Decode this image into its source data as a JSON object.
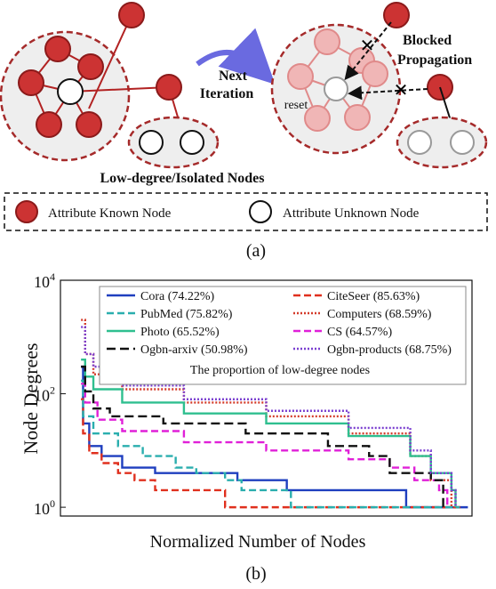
{
  "panel_a": {
    "arrow_label_line1": "Next",
    "arrow_label_line2": "Iteration",
    "blocked_line1": "Blocked",
    "blocked_line2": "Propagation",
    "reset_label": "reset",
    "low_degree_label": "Low-degree/Isolated Nodes",
    "legend_known": "Attribute Known Node",
    "legend_unknown": "Attribute Unknown Node",
    "caption": "(a)",
    "colors": {
      "known_fill": "#cc3333",
      "known_stroke": "#8b1a1a",
      "faded_fill": "#f0b6b6",
      "faded_stroke": "#e08a8a",
      "circle_region": "#eeeeee",
      "dashed_border": "#a52a2a",
      "arrow": "#6a6ae0"
    }
  },
  "panel_b": {
    "caption": "(b)",
    "legend_note": "The proportion of low-degree nodes"
  },
  "chart_data": {
    "type": "line",
    "xlabel": "Normalized Number of Nodes",
    "ylabel": "Node Degrees",
    "yscale": "log",
    "ylim": [
      0.7,
      10000
    ],
    "xlim": [
      0,
      1
    ],
    "y_ticks": [
      {
        "value": 1,
        "base": "10",
        "exp": "0"
      },
      {
        "value": 100,
        "base": "10",
        "exp": "2"
      },
      {
        "value": 10000,
        "base": "10",
        "exp": "4"
      }
    ],
    "legend_placement": "top-right",
    "series": [
      {
        "name": "Cora (74.22%)",
        "color": "#1f3fbf",
        "dash": "",
        "points": [
          [
            0.05,
            300
          ],
          [
            0.055,
            30
          ],
          [
            0.07,
            12
          ],
          [
            0.1,
            8
          ],
          [
            0.15,
            5
          ],
          [
            0.23,
            4
          ],
          [
            0.35,
            4
          ],
          [
            0.43,
            3
          ],
          [
            0.55,
            2
          ],
          [
            0.8,
            2
          ],
          [
            0.84,
            1
          ],
          [
            0.99,
            1
          ]
        ]
      },
      {
        "name": "CiteSeer (85.63%)",
        "color": "#e0301e",
        "dash": "8,4",
        "points": [
          [
            0.05,
            80
          ],
          [
            0.055,
            20
          ],
          [
            0.07,
            9
          ],
          [
            0.1,
            6
          ],
          [
            0.14,
            4
          ],
          [
            0.18,
            3
          ],
          [
            0.23,
            2
          ],
          [
            0.35,
            2
          ],
          [
            0.4,
            1
          ],
          [
            0.6,
            1
          ],
          [
            0.62,
            1
          ],
          [
            0.98,
            1
          ]
        ]
      },
      {
        "name": "PubMed (75.82%)",
        "color": "#2aaeae",
        "dash": "8,4",
        "points": [
          [
            0.05,
            170
          ],
          [
            0.055,
            40
          ],
          [
            0.08,
            20
          ],
          [
            0.14,
            12
          ],
          [
            0.2,
            8
          ],
          [
            0.28,
            5
          ],
          [
            0.33,
            4
          ],
          [
            0.4,
            3
          ],
          [
            0.44,
            2
          ],
          [
            0.55,
            2
          ],
          [
            0.56,
            1
          ],
          [
            0.97,
            1
          ]
        ]
      },
      {
        "name": "Computers (68.59%)",
        "color": "#d43b2a",
        "dash": "2,2",
        "points": [
          [
            0.05,
            2000
          ],
          [
            0.06,
            500
          ],
          [
            0.08,
            220
          ],
          [
            0.15,
            120
          ],
          [
            0.3,
            70
          ],
          [
            0.5,
            40
          ],
          [
            0.7,
            20
          ],
          [
            0.85,
            8
          ],
          [
            0.9,
            3
          ],
          [
            0.95,
            1
          ]
        ]
      },
      {
        "name": "Photo (65.52%)",
        "color": "#2fbf8f",
        "dash": "",
        "points": [
          [
            0.05,
            400
          ],
          [
            0.06,
            200
          ],
          [
            0.08,
            120
          ],
          [
            0.15,
            70
          ],
          [
            0.3,
            45
          ],
          [
            0.5,
            30
          ],
          [
            0.7,
            18
          ],
          [
            0.85,
            8
          ],
          [
            0.9,
            4
          ],
          [
            0.95,
            2
          ],
          [
            0.96,
            1
          ]
        ]
      },
      {
        "name": "CS (64.57%)",
        "color": "#e020d8",
        "dash": "8,4",
        "points": [
          [
            0.05,
            150
          ],
          [
            0.06,
            70
          ],
          [
            0.09,
            35
          ],
          [
            0.15,
            22
          ],
          [
            0.3,
            14
          ],
          [
            0.5,
            10
          ],
          [
            0.7,
            7
          ],
          [
            0.8,
            5
          ],
          [
            0.86,
            3
          ],
          [
            0.92,
            2
          ],
          [
            0.94,
            1
          ]
        ]
      },
      {
        "name": "Ogbn-arxiv (50.98%)",
        "color": "#111111",
        "dash": "10,5",
        "points": [
          [
            0.05,
            300
          ],
          [
            0.06,
            110
          ],
          [
            0.08,
            55
          ],
          [
            0.12,
            40
          ],
          [
            0.25,
            30
          ],
          [
            0.45,
            20
          ],
          [
            0.65,
            12
          ],
          [
            0.75,
            8
          ],
          [
            0.8,
            4
          ],
          [
            0.9,
            3
          ],
          [
            0.93,
            1
          ]
        ]
      },
      {
        "name": "Ogbn-products (68.75%)",
        "color": "#7a3fd0",
        "dash": "2,2",
        "points": [
          [
            0.05,
            1500
          ],
          [
            0.06,
            500
          ],
          [
            0.08,
            300
          ],
          [
            0.15,
            140
          ],
          [
            0.3,
            80
          ],
          [
            0.5,
            50
          ],
          [
            0.7,
            25
          ],
          [
            0.85,
            10
          ],
          [
            0.9,
            4
          ],
          [
            0.95,
            2
          ],
          [
            0.96,
            1
          ]
        ]
      }
    ]
  }
}
